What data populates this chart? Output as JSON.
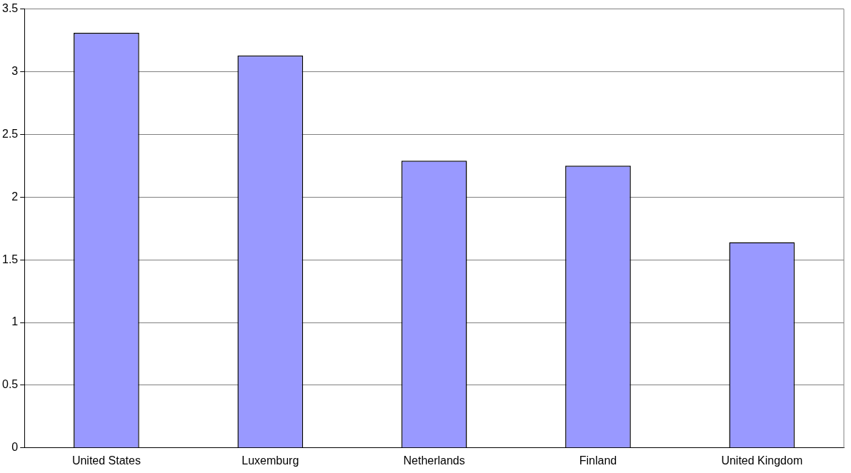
{
  "chart_data": {
    "type": "bar",
    "categories": [
      "United States",
      "Luxemburg",
      "Netherlands",
      "Finland",
      "United Kingdom"
    ],
    "values": [
      3.31,
      3.13,
      2.29,
      2.25,
      1.64
    ],
    "color": "#9999ff",
    "ylim": [
      0,
      3.5
    ],
    "yticks": [
      0,
      0.5,
      1,
      1.5,
      2,
      2.5,
      3,
      3.5
    ],
    "grid": "y",
    "legend": false
  }
}
